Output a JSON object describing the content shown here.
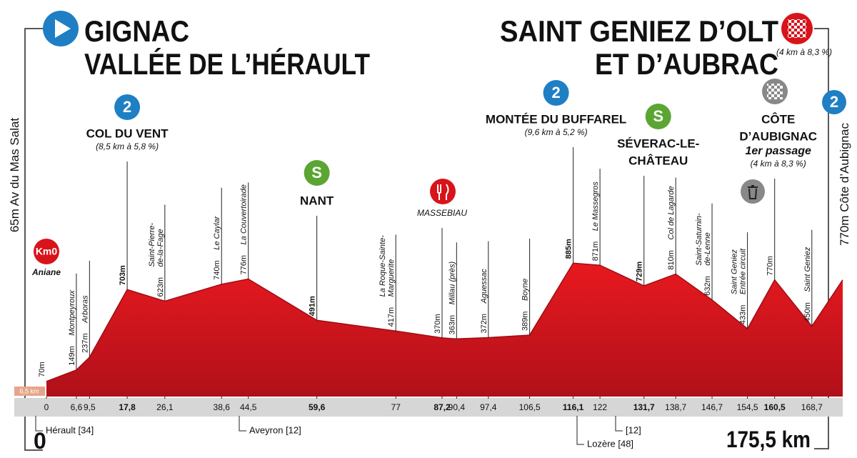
{
  "header": {
    "start": [
      "GIGNAC",
      "VALLÉE DE L’HÉRAULT"
    ],
    "finish": [
      "SAINT GENIEZ D’OLT",
      "ET D’AUBRAC"
    ],
    "finish_note": "(4 km à 8,3 %)"
  },
  "left_label": "65m Av du Mas Salat",
  "left_strip": "6,5 km",
  "right_label": "770m Côte d’Aubignac",
  "right_badge": "2",
  "start_km": "0",
  "total": "175,5 km",
  "departments": [
    "Hérault [34]",
    "Aveyron [12]",
    "Lozère [48]",
    "[12]"
  ],
  "chart_data": {
    "type": "area",
    "color": "#d8141b",
    "x": [
      0,
      6.6,
      9.5,
      17.8,
      26.1,
      38.6,
      44.5,
      59.6,
      77,
      87.2,
      90.4,
      97.4,
      106.5,
      116.1,
      122,
      131.7,
      138.7,
      146.7,
      154.5,
      160.5,
      168.7,
      175.5
    ],
    "values": [
      70,
      149,
      237,
      703,
      623,
      740,
      776,
      491,
      417,
      370,
      363,
      372,
      389,
      885,
      871,
      729,
      810,
      632,
      433,
      770,
      450,
      770
    ],
    "value_labels": [
      "70m",
      "149m",
      "237m",
      "703m",
      "623m",
      "740m",
      "776m",
      "491m",
      "417m",
      "370m",
      "363m",
      "372m",
      "389m",
      "885m",
      "871m",
      "729m",
      "810m",
      "632m",
      "433m",
      "770m",
      "450m",
      null
    ],
    "names": [
      null,
      [
        "Montpeyroux"
      ],
      [
        "Arboras"
      ],
      null,
      [
        "Saint-Pierre-",
        "de-la-Fage"
      ],
      [
        "Le Caylar"
      ],
      [
        "La Couvertoirade"
      ],
      null,
      [
        "La Roque-Sainte-",
        "Marguerite"
      ],
      null,
      [
        "Millau (près)"
      ],
      [
        "Aguessac"
      ],
      [
        "Boyne"
      ],
      null,
      [
        "Le Massegros"
      ],
      null,
      [
        "Col de Lagarde"
      ],
      [
        "Saint-Saturnin-",
        "de-Lenne"
      ],
      [
        "Saint Geniez",
        "Entrée circuit"
      ],
      null,
      [
        "Saint Geniez"
      ],
      null
    ],
    "climbs": [
      {
        "km": 0,
        "badge": "Km0",
        "badge_color": "#d8141b",
        "name": [
          "Aniane"
        ]
      },
      {
        "km": 17.8,
        "badge": "2",
        "badge_color": "#1f7fc4",
        "name": [
          "COL DU VENT"
        ],
        "detail": [
          "(8,5 km à 5,8 %)"
        ]
      },
      {
        "km": 59.6,
        "badge": "S",
        "badge_color": "#5ba533",
        "name": [
          "NANT"
        ]
      },
      {
        "km": 87.2,
        "name": [
          "MASSEBIAU"
        ]
      },
      {
        "km": 116.1,
        "badge": "2",
        "badge_color": "#1f7fc4",
        "name": [
          "MONTÉE DU BUFFAREL"
        ],
        "detail": [
          "(9,6 km à 5,2 %)"
        ]
      },
      {
        "km": 131.7,
        "badge": "S",
        "badge_color": "#5ba533",
        "name": [
          "SÉVERAC-LE-",
          "CHÂTEAU"
        ]
      },
      {
        "km": 160.5,
        "name": [
          "CÔTE",
          "D’AUBIGNAC"
        ],
        "subtitle": "1er passage",
        "detail": [
          "(4 km à 8,3 %)"
        ]
      }
    ],
    "xlim": [
      0,
      175.5
    ],
    "ylim": [
      0,
      1000
    ],
    "xticks": [
      0,
      {
        "value": 6.6,
        "label": "6,6"
      },
      {
        "value": 9.5,
        "label": "9,5"
      },
      {
        "value": 17.8,
        "label": "17,8"
      },
      {
        "value": 26.1,
        "label": "26,1"
      },
      {
        "value": 38.6,
        "label": "38,6"
      },
      {
        "value": 44.5,
        "label": "44,5"
      },
      {
        "value": 59.6,
        "label": "59,6"
      },
      77,
      {
        "value": 87.2,
        "label": "87,2"
      },
      {
        "value": 90.4,
        "label": "90,4"
      },
      {
        "value": 97.4,
        "label": "97,4"
      },
      {
        "value": 106.5,
        "label": "106,5"
      },
      {
        "value": 116.1,
        "label": "116,1"
      },
      122,
      {
        "value": 131.7,
        "label": "131,7"
      },
      {
        "value": 138.7,
        "label": "138,7"
      },
      {
        "value": 146.7,
        "label": "146,7"
      },
      {
        "value": 154.5,
        "label": "154,5"
      },
      {
        "value": 160.5,
        "label": "160,5"
      },
      {
        "value": 168.7,
        "label": "168,7"
      }
    ]
  }
}
